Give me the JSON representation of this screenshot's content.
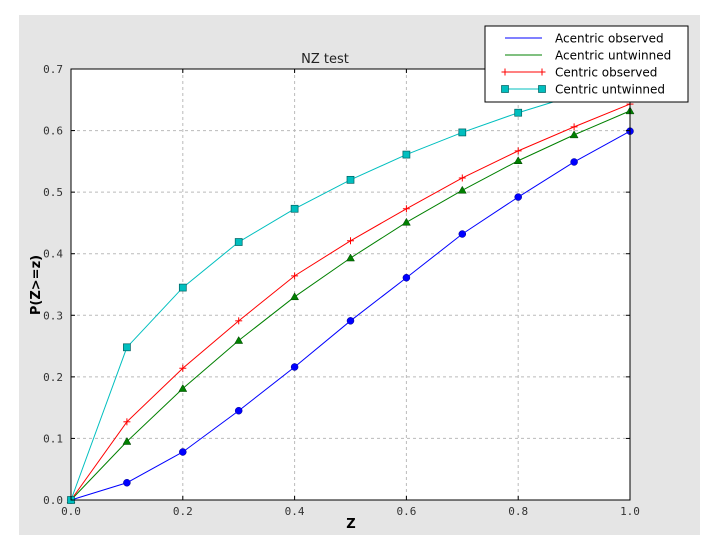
{
  "chart_data": {
    "type": "line",
    "title": "NZ test",
    "xlabel": "Z",
    "ylabel": "P(Z>=z)",
    "xlim": [
      0,
      1.0
    ],
    "ylim": [
      0,
      0.7
    ],
    "xticks": [
      "0.0",
      "0.2",
      "0.4",
      "0.6",
      "0.8",
      "1.0"
    ],
    "yticks": [
      "0.0",
      "0.1",
      "0.2",
      "0.3",
      "0.4",
      "0.5",
      "0.6",
      "0.7"
    ],
    "grid": true,
    "legend_position": "top-right",
    "x": [
      0,
      0.1,
      0.2,
      0.3,
      0.4,
      0.5,
      0.6,
      0.7,
      0.8,
      0.9,
      1.0
    ],
    "series": [
      {
        "name": "Acentric observed",
        "color": "#0000ff",
        "marker": "circle",
        "values": [
          0,
          0.028,
          0.078,
          0.145,
          0.216,
          0.291,
          0.361,
          0.432,
          0.492,
          0.549,
          0.599
        ]
      },
      {
        "name": "Acentric untwinned",
        "color": "#008000",
        "marker": "triangle",
        "values": [
          0,
          0.095,
          0.181,
          0.259,
          0.33,
          0.393,
          0.451,
          0.503,
          0.551,
          0.593,
          0.632
        ]
      },
      {
        "name": "Centric observed",
        "color": "#ff0000",
        "marker": "plus",
        "values": [
          0,
          0.127,
          0.214,
          0.291,
          0.364,
          0.421,
          0.473,
          0.523,
          0.567,
          0.606,
          0.643
        ]
      },
      {
        "name": "Centric untwinned",
        "color": "#00bfbf",
        "marker": "square",
        "values": [
          0,
          0.248,
          0.345,
          0.419,
          0.473,
          0.52,
          0.561,
          0.597,
          0.629,
          0.657,
          0.683
        ]
      }
    ]
  }
}
